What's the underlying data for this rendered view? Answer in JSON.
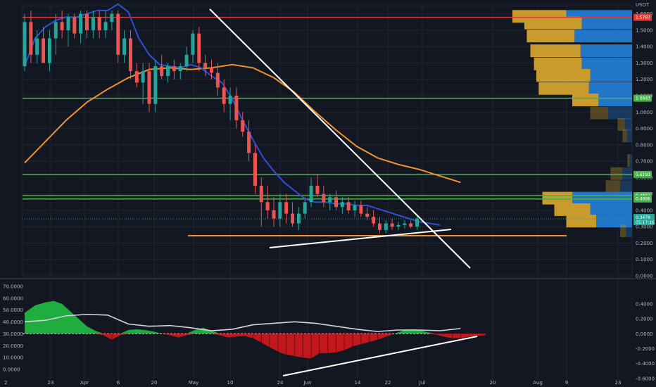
{
  "chart_data": [
    {
      "type": "candlestick",
      "quote_currency": "USDT",
      "price_axis": {
        "ylim": [
          -0.0,
          1.65
        ],
        "ticks": [
          "1.6000",
          "1.5000",
          "1.4000",
          "1.3000",
          "1.2000",
          "1.1000",
          "1.0000",
          "0.9000",
          "0.8000",
          "0.7000",
          "0.6000",
          "0.5000",
          "0.4000",
          "0.3000",
          "0.2000",
          "0.1000",
          "0.0000"
        ],
        "tick_values": [
          1.6,
          1.5,
          1.4,
          1.3,
          1.2,
          1.1,
          1.0,
          0.9,
          0.8,
          0.7,
          0.6,
          0.5,
          0.4,
          0.3,
          0.2,
          0.1,
          0.0
        ]
      },
      "time_axis": {
        "labels": [
          "23",
          "Apr",
          "6",
          "20",
          "May",
          "10",
          "24",
          "Jun",
          "14",
          "22",
          "Jul",
          "20",
          "Aug",
          "9",
          "23"
        ],
        "badge": "2"
      },
      "current_price": {
        "label": "0.3478",
        "countdown": "05:17:16",
        "value": 0.3478
      },
      "horizontal_levels": [
        {
          "label": "1.5787",
          "value": 1.5787,
          "color": "#e53935"
        },
        {
          "label": "1.0843",
          "value": 1.0843,
          "color": "#4caf50"
        },
        {
          "label": "0.6193",
          "value": 0.6193,
          "color": "#4caf50"
        },
        {
          "label": "0.4897",
          "value": 0.4897,
          "color": "#4caf50"
        },
        {
          "label": "0.4696",
          "value": 0.4696,
          "color": "#4caf50"
        }
      ],
      "support_line_value": 0.245,
      "moving_averages": [
        {
          "color": "#f0912d",
          "points": [
            [
              0,
              0.69
            ],
            [
              10,
              0.82
            ],
            [
              20,
              0.95
            ],
            [
              30,
              1.06
            ],
            [
              40,
              1.14
            ],
            [
              50,
              1.21
            ],
            [
              60,
              1.26
            ],
            [
              70,
              1.27
            ],
            [
              80,
              1.26
            ],
            [
              90,
              1.27
            ],
            [
              100,
              1.29
            ],
            [
              110,
              1.27
            ],
            [
              120,
              1.21
            ],
            [
              130,
              1.12
            ],
            [
              140,
              1.0
            ],
            [
              150,
              0.89
            ],
            [
              160,
              0.79
            ],
            [
              170,
              0.72
            ],
            [
              180,
              0.68
            ],
            [
              190,
              0.65
            ],
            [
              200,
              0.61
            ],
            [
              210,
              0.57
            ]
          ]
        },
        {
          "color": "#2f4fd4",
          "points": [
            [
              0,
              1.28
            ],
            [
              5,
              1.45
            ],
            [
              10,
              1.52
            ],
            [
              15,
              1.56
            ],
            [
              20,
              1.58
            ],
            [
              25,
              1.58
            ],
            [
              30,
              1.6
            ],
            [
              35,
              1.62
            ],
            [
              40,
              1.62
            ],
            [
              45,
              1.66
            ],
            [
              50,
              1.61
            ],
            [
              55,
              1.45
            ],
            [
              60,
              1.35
            ],
            [
              65,
              1.29
            ],
            [
              70,
              1.28
            ],
            [
              75,
              1.27
            ],
            [
              80,
              1.29
            ],
            [
              85,
              1.27
            ],
            [
              90,
              1.22
            ],
            [
              95,
              1.18
            ],
            [
              100,
              1.08
            ],
            [
              105,
              0.95
            ],
            [
              110,
              0.83
            ],
            [
              115,
              0.72
            ],
            [
              120,
              0.64
            ],
            [
              125,
              0.57
            ],
            [
              130,
              0.52
            ],
            [
              135,
              0.47
            ],
            [
              140,
              0.45
            ],
            [
              145,
              0.45
            ],
            [
              150,
              0.44
            ],
            [
              155,
              0.44
            ],
            [
              160,
              0.43
            ],
            [
              165,
              0.43
            ],
            [
              170,
              0.41
            ],
            [
              175,
              0.39
            ],
            [
              180,
              0.37
            ],
            [
              185,
              0.35
            ],
            [
              190,
              0.33
            ],
            [
              195,
              0.32
            ],
            [
              200,
              0.31
            ]
          ]
        }
      ],
      "candles_ohlc_approx": [
        [
          0,
          1.28,
          1.6,
          1.25,
          1.55
        ],
        [
          3,
          1.55,
          1.62,
          1.3,
          1.35
        ],
        [
          6,
          1.35,
          1.5,
          1.3,
          1.45
        ],
        [
          9,
          1.45,
          1.52,
          1.3,
          1.3
        ],
        [
          12,
          1.3,
          1.5,
          1.25,
          1.45
        ],
        [
          15,
          1.45,
          1.6,
          1.35,
          1.55
        ],
        [
          18,
          1.55,
          1.62,
          1.45,
          1.5
        ],
        [
          21,
          1.5,
          1.6,
          1.4,
          1.58
        ],
        [
          24,
          1.58,
          1.6,
          1.45,
          1.48
        ],
        [
          27,
          1.48,
          1.62,
          1.42,
          1.6
        ],
        [
          30,
          1.6,
          1.62,
          1.45,
          1.5
        ],
        [
          33,
          1.5,
          1.62,
          1.45,
          1.58
        ],
        [
          36,
          1.58,
          1.62,
          1.45,
          1.5
        ],
        [
          39,
          1.5,
          1.62,
          1.45,
          1.55
        ],
        [
          42,
          1.55,
          1.62,
          1.5,
          1.6
        ],
        [
          45,
          1.6,
          1.62,
          1.3,
          1.35
        ],
        [
          48,
          1.35,
          1.5,
          1.3,
          1.45
        ],
        [
          51,
          1.45,
          1.5,
          1.2,
          1.25
        ],
        [
          54,
          1.25,
          1.3,
          1.15,
          1.18
        ],
        [
          57,
          1.18,
          1.3,
          1.05,
          1.25
        ],
        [
          60,
          1.25,
          1.3,
          1.0,
          1.05
        ],
        [
          63,
          1.05,
          1.32,
          1.0,
          1.28
        ],
        [
          66,
          1.28,
          1.35,
          1.2,
          1.22
        ],
        [
          69,
          1.22,
          1.3,
          1.18,
          1.28
        ],
        [
          72,
          1.28,
          1.32,
          1.2,
          1.25
        ],
        [
          75,
          1.25,
          1.3,
          1.2,
          1.28
        ],
        [
          78,
          1.28,
          1.4,
          1.25,
          1.35
        ],
        [
          81,
          1.35,
          1.5,
          1.3,
          1.48
        ],
        [
          84,
          1.48,
          1.52,
          1.25,
          1.3
        ],
        [
          87,
          1.3,
          1.35,
          1.22,
          1.27
        ],
        [
          90,
          1.27,
          1.32,
          1.2,
          1.24
        ],
        [
          93,
          1.24,
          1.3,
          1.1,
          1.15
        ],
        [
          96,
          1.15,
          1.2,
          1.0,
          1.05
        ],
        [
          99,
          1.05,
          1.15,
          0.95,
          1.1
        ],
        [
          102,
          1.1,
          1.15,
          0.9,
          0.95
        ],
        [
          105,
          0.95,
          1.0,
          0.85,
          0.88
        ],
        [
          108,
          0.88,
          0.95,
          0.7,
          0.75
        ],
        [
          111,
          0.75,
          0.8,
          0.5,
          0.55
        ],
        [
          114,
          0.55,
          0.6,
          0.3,
          0.45
        ],
        [
          117,
          0.45,
          0.55,
          0.35,
          0.4
        ],
        [
          120,
          0.4,
          0.48,
          0.3,
          0.35
        ],
        [
          123,
          0.35,
          0.5,
          0.3,
          0.45
        ],
        [
          126,
          0.45,
          0.5,
          0.32,
          0.38
        ],
        [
          129,
          0.38,
          0.45,
          0.3,
          0.32
        ],
        [
          132,
          0.32,
          0.42,
          0.28,
          0.38
        ],
        [
          135,
          0.38,
          0.48,
          0.35,
          0.45
        ],
        [
          138,
          0.45,
          0.6,
          0.42,
          0.55
        ],
        [
          141,
          0.55,
          0.62,
          0.48,
          0.5
        ],
        [
          144,
          0.5,
          0.55,
          0.42,
          0.45
        ],
        [
          147,
          0.45,
          0.5,
          0.4,
          0.48
        ],
        [
          150,
          0.48,
          0.52,
          0.4,
          0.42
        ],
        [
          153,
          0.42,
          0.48,
          0.38,
          0.45
        ],
        [
          156,
          0.45,
          0.48,
          0.38,
          0.4
        ],
        [
          159,
          0.4,
          0.46,
          0.36,
          0.43
        ],
        [
          162,
          0.43,
          0.46,
          0.36,
          0.38
        ],
        [
          165,
          0.38,
          0.42,
          0.34,
          0.36
        ],
        [
          168,
          0.36,
          0.4,
          0.3,
          0.32
        ],
        [
          171,
          0.32,
          0.36,
          0.26,
          0.28
        ],
        [
          174,
          0.28,
          0.34,
          0.26,
          0.32
        ],
        [
          177,
          0.32,
          0.35,
          0.28,
          0.3
        ],
        [
          180,
          0.3,
          0.33,
          0.28,
          0.31
        ],
        [
          183,
          0.31,
          0.34,
          0.29,
          0.32
        ],
        [
          186,
          0.32,
          0.34,
          0.29,
          0.3
        ],
        [
          189,
          0.3,
          0.36,
          0.28,
          0.35
        ]
      ],
      "volume_profile_bins": [
        {
          "price": 1.58,
          "total": 100,
          "up": 45
        },
        {
          "price": 1.54,
          "total": 90,
          "up": 48
        },
        {
          "price": 1.46,
          "total": 88,
          "up": 40
        },
        {
          "price": 1.37,
          "total": 85,
          "up": 42
        },
        {
          "price": 1.29,
          "total": 82,
          "up": 40
        },
        {
          "price": 1.22,
          "total": 80,
          "up": 45
        },
        {
          "price": 1.14,
          "total": 78,
          "up": 42
        },
        {
          "price": 1.07,
          "total": 50,
          "up": 22
        },
        {
          "price": 0.99,
          "total": 35,
          "up": 15
        },
        {
          "price": 0.92,
          "total": 12,
          "up": 6
        },
        {
          "price": 0.85,
          "total": 8,
          "up": 4
        },
        {
          "price": 0.7,
          "total": 4,
          "up": 2
        },
        {
          "price": 0.62,
          "total": 18,
          "up": 10
        },
        {
          "price": 0.54,
          "total": 22,
          "up": 12
        },
        {
          "price": 0.47,
          "total": 75,
          "up": 25
        },
        {
          "price": 0.4,
          "total": 65,
          "up": 30
        },
        {
          "price": 0.33,
          "total": 55,
          "up": 25
        },
        {
          "price": 0.27,
          "total": 10,
          "up": 5
        }
      ]
    },
    {
      "type": "oscillator",
      "ylim": [
        -0.62,
        0.72
      ],
      "left_ticks": [
        "70.0000",
        "60.0000",
        "50.0000",
        "40.0000",
        "30.0000",
        "20.0000",
        "10.0000",
        "0.0000"
      ],
      "left_tick_values": [
        70,
        60,
        50,
        40,
        30,
        20,
        10,
        0
      ],
      "right_ticks": [
        "0.4000",
        "0.2000",
        "0.0000",
        "-0.2000",
        "-0.4000",
        "-0.6000"
      ],
      "right_tick_values": [
        0.4,
        0.2,
        0.0,
        -0.2,
        -0.4,
        -0.6
      ],
      "histogram_points": [
        [
          0,
          0.28
        ],
        [
          5,
          0.38
        ],
        [
          10,
          0.42
        ],
        [
          14,
          0.44
        ],
        [
          18,
          0.4
        ],
        [
          22,
          0.3
        ],
        [
          26,
          0.2
        ],
        [
          30,
          0.1
        ],
        [
          34,
          0.04
        ],
        [
          38,
          -0.02
        ],
        [
          42,
          -0.08
        ],
        [
          46,
          -0.02
        ],
        [
          50,
          0.05
        ],
        [
          54,
          0.06
        ],
        [
          58,
          0.05
        ],
        [
          62,
          0.03
        ],
        [
          66,
          0.0
        ],
        [
          70,
          -0.02
        ],
        [
          74,
          -0.05
        ],
        [
          78,
          -0.02
        ],
        [
          82,
          0.05
        ],
        [
          86,
          0.08
        ],
        [
          90,
          0.04
        ],
        [
          94,
          -0.02
        ],
        [
          98,
          -0.05
        ],
        [
          102,
          -0.04
        ],
        [
          106,
          -0.03
        ],
        [
          110,
          -0.06
        ],
        [
          114,
          -0.12
        ],
        [
          118,
          -0.18
        ],
        [
          122,
          -0.24
        ],
        [
          126,
          -0.28
        ],
        [
          130,
          -0.3
        ],
        [
          134,
          -0.32
        ],
        [
          138,
          -0.33
        ],
        [
          142,
          -0.26
        ],
        [
          146,
          -0.26
        ],
        [
          150,
          -0.25
        ],
        [
          154,
          -0.22
        ],
        [
          158,
          -0.17
        ],
        [
          162,
          -0.14
        ],
        [
          166,
          -0.11
        ],
        [
          170,
          -0.08
        ],
        [
          174,
          -0.04
        ],
        [
          178,
          -0.0
        ],
        [
          182,
          0.04
        ],
        [
          186,
          0.06
        ],
        [
          190,
          0.05
        ],
        [
          194,
          0.02
        ],
        [
          198,
          -0.01
        ],
        [
          202,
          -0.04
        ],
        [
          206,
          -0.06
        ],
        [
          210,
          -0.06
        ],
        [
          214,
          -0.04
        ],
        [
          218,
          -0.03
        ],
        [
          222,
          -0.02
        ]
      ],
      "line_points": [
        [
          0,
          0.16
        ],
        [
          10,
          0.18
        ],
        [
          20,
          0.24
        ],
        [
          30,
          0.26
        ],
        [
          40,
          0.25
        ],
        [
          50,
          0.13
        ],
        [
          60,
          0.1
        ],
        [
          70,
          0.11
        ],
        [
          80,
          0.08
        ],
        [
          90,
          0.04
        ],
        [
          100,
          0.06
        ],
        [
          110,
          0.12
        ],
        [
          120,
          0.14
        ],
        [
          130,
          0.16
        ],
        [
          140,
          0.14
        ],
        [
          150,
          0.1
        ],
        [
          160,
          0.06
        ],
        [
          170,
          0.03
        ],
        [
          180,
          0.05
        ],
        [
          190,
          0.05
        ],
        [
          200,
          0.04
        ],
        [
          210,
          0.07
        ]
      ]
    }
  ],
  "colors": {
    "background": "#131722",
    "up": "#26a69a",
    "down": "#ef5350",
    "grid": "#1f2430"
  }
}
